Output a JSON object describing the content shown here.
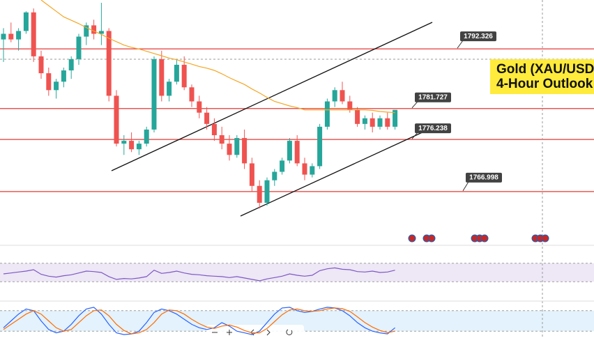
{
  "chart_data": [
    {
      "type": "candlestick",
      "title_lines": [
        "Gold (XAU/USD",
        "4-Hour Outlook"
      ],
      "ylim": [
        1757.7,
        1801
      ],
      "up_color": "#26a69a",
      "down_color": "#ef5350",
      "open": [
        1794,
        1795,
        1794,
        1795.5,
        1798.8,
        1791,
        1788,
        1785,
        1786.5,
        1788.5,
        1790.5,
        1794.5,
        1796.5,
        1795,
        1795.5,
        1784,
        1775.5,
        1776,
        1774.5,
        1775.5,
        1778,
        1790.5,
        1784,
        1786.5,
        1789.5,
        1785.5,
        1783,
        1781,
        1779,
        1777,
        1775.5,
        1773.5,
        1776.5,
        1772,
        1768,
        1765,
        1769,
        1770.5,
        1772.5,
        1776,
        1772,
        1770,
        1771.5,
        1778.5,
        1783,
        1785,
        1783,
        1781.5,
        1779,
        1780,
        1778.5,
        1780,
        1778.5
      ],
      "high": [
        1796,
        1797,
        1796,
        1799,
        1799.5,
        1792,
        1789,
        1787,
        1789,
        1791,
        1795,
        1797,
        1797.5,
        1800.5,
        1796,
        1785,
        1777,
        1777.5,
        1776,
        1778.5,
        1791,
        1792,
        1787,
        1790.5,
        1791,
        1786,
        1784,
        1782,
        1780,
        1778.5,
        1777,
        1777,
        1778,
        1773,
        1769,
        1769.5,
        1771,
        1773,
        1776.5,
        1777,
        1773,
        1772,
        1779,
        1783.5,
        1785.5,
        1786.5,
        1784,
        1782,
        1780.5,
        1781,
        1780.5,
        1781,
        1781.5
      ],
      "low": [
        1790,
        1793.5,
        1792,
        1795,
        1790,
        1787,
        1784,
        1783.5,
        1785.5,
        1787,
        1789.5,
        1793,
        1794,
        1793,
        1783,
        1775,
        1773.5,
        1774,
        1773.5,
        1775,
        1777.5,
        1783,
        1783,
        1786,
        1785,
        1782,
        1780,
        1778,
        1776,
        1774.5,
        1772.5,
        1773,
        1771,
        1767,
        1764,
        1764.5,
        1768,
        1770,
        1772,
        1771.5,
        1769,
        1769.5,
        1771,
        1778,
        1782,
        1782.5,
        1781,
        1778.5,
        1778,
        1777.5,
        1778,
        1778,
        1778
      ],
      "close": [
        1795,
        1794,
        1795.5,
        1798.8,
        1791,
        1788,
        1785,
        1786.5,
        1788.5,
        1790.5,
        1794.5,
        1796.5,
        1795,
        1795.5,
        1784,
        1775.5,
        1776,
        1774.5,
        1775.5,
        1778,
        1790.5,
        1784,
        1786.5,
        1789.5,
        1785.5,
        1783,
        1781,
        1779,
        1777,
        1775.5,
        1773.5,
        1776.5,
        1772,
        1768,
        1765,
        1769,
        1770.5,
        1772.5,
        1776,
        1772,
        1770,
        1771.5,
        1778.5,
        1783,
        1785,
        1783,
        1781.5,
        1779,
        1780,
        1778.5,
        1780,
        1778.5,
        1781.5
      ],
      "ma": {
        "color": "#f5a623",
        "values": [
          null,
          null,
          null,
          null,
          null,
          1801,
          1800,
          1799,
          1798,
          1797.4,
          1796.8,
          1796.1,
          1795.5,
          1794.9,
          1794.2,
          1793.6,
          1793,
          1792.6,
          1792.3,
          1791.9,
          1791.5,
          1791.1,
          1790.7,
          1790.4,
          1790,
          1789.6,
          1789.2,
          1788.9,
          1788.5,
          1787.9,
          1787.2,
          1786.6,
          1786,
          1785.2,
          1784.5,
          1783.7,
          1783,
          1782.6,
          1782.2,
          1781.9,
          1781.5,
          1781.5,
          1781.5,
          1781.5,
          1781.5,
          1781.5,
          1781.5,
          1781.5,
          1781.5,
          1781.4,
          1781.2,
          1781.1,
          1781
        ]
      },
      "levels": {
        "color": "#e53935",
        "values": [
          1792.326,
          1781.727,
          1776.238,
          1766.998
        ]
      }
    },
    {
      "type": "line",
      "ylim": [
        0,
        100
      ],
      "bands": [
        30,
        70
      ],
      "band_color": "#ede7f6",
      "series": [
        {
          "color": "#7e57c2",
          "values": [
            47,
            49,
            51,
            53,
            56,
            46,
            42,
            40,
            43,
            45,
            49,
            53,
            52,
            50,
            41,
            35,
            37,
            36,
            38,
            41,
            55,
            48,
            50,
            53,
            49,
            46,
            45,
            43,
            42,
            41,
            39,
            41,
            38,
            35,
            32,
            36,
            39,
            42,
            47,
            44,
            42,
            44,
            54,
            58,
            60,
            57,
            56,
            52,
            51,
            53,
            50,
            51,
            55
          ]
        }
      ]
    },
    {
      "type": "line",
      "ylim": [
        0,
        100
      ],
      "bands": [
        20,
        80
      ],
      "band_color": "#e3f2fd",
      "series": [
        {
          "color": "#2962ff",
          "values": [
            30,
            50,
            70,
            85,
            80,
            50,
            25,
            15,
            20,
            40,
            65,
            85,
            90,
            70,
            40,
            15,
            10,
            12,
            20,
            45,
            75,
            85,
            80,
            70,
            55,
            40,
            30,
            25,
            30,
            45,
            35,
            20,
            15,
            10,
            20,
            45,
            70,
            88,
            90,
            80,
            75,
            78,
            85,
            90,
            88,
            80,
            65,
            45,
            30,
            20,
            15,
            12,
            30
          ]
        },
        {
          "color": "#ff6d00",
          "values": [
            25,
            40,
            55,
            70,
            80,
            70,
            50,
            30,
            20,
            25,
            45,
            65,
            80,
            82,
            65,
            40,
            22,
            12,
            15,
            25,
            45,
            70,
            82,
            80,
            70,
            55,
            42,
            32,
            28,
            35,
            38,
            32,
            22,
            15,
            15,
            28,
            48,
            68,
            82,
            85,
            80,
            78,
            80,
            85,
            88,
            86,
            78,
            62,
            45,
            32,
            22,
            16,
            20
          ]
        }
      ]
    }
  ]
}
